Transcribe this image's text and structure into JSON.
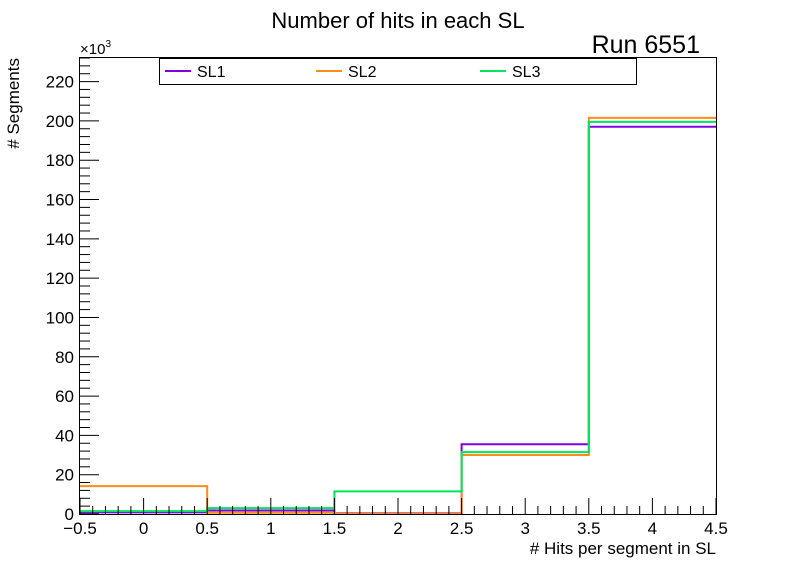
{
  "chart_data": {
    "type": "histogram-step",
    "title": "Number of hits in each SL",
    "annotation": "Run 6551",
    "y_multiplier_label": "×10",
    "y_multiplier_exponent": "3",
    "xlabel": "# Hits per segment in SL",
    "ylabel": "# Segments",
    "xlim": [
      -0.5,
      4.5
    ],
    "ylim": [
      0,
      232
    ],
    "x_ticks": [
      -0.5,
      0,
      0.5,
      1,
      1.5,
      2,
      2.5,
      3,
      3.5,
      4,
      4.5
    ],
    "x_tick_labels": [
      "−0.5",
      "0",
      "0.5",
      "1",
      "1.5",
      "2",
      "2.5",
      "3",
      "3.5",
      "4",
      "4.5"
    ],
    "y_ticks": [
      0,
      20,
      40,
      60,
      80,
      100,
      120,
      140,
      160,
      180,
      200,
      220
    ],
    "y_tick_labels": [
      "0",
      "20",
      "40",
      "60",
      "80",
      "100",
      "120",
      "140",
      "160",
      "180",
      "200",
      "220"
    ],
    "bin_edges": [
      -0.5,
      0.5,
      1.5,
      2.5,
      3.5,
      4.5
    ],
    "categories": [
      0,
      1,
      2,
      3,
      4
    ],
    "series": [
      {
        "name": "SL1",
        "color": "#8000e0",
        "values": [
          0.8,
          1.8,
          0.4,
          35.5,
          197
        ]
      },
      {
        "name": "SL2",
        "color": "#ff8c1a",
        "values": [
          14.2,
          0.6,
          0.2,
          30.0,
          201.5
        ]
      },
      {
        "name": "SL3",
        "color": "#00e65c",
        "values": [
          1.5,
          3.0,
          11.5,
          31.5,
          199.5
        ]
      }
    ],
    "legend": {
      "placement": "top",
      "entries": [
        "SL1",
        "SL2",
        "SL3"
      ]
    },
    "grid": false
  }
}
